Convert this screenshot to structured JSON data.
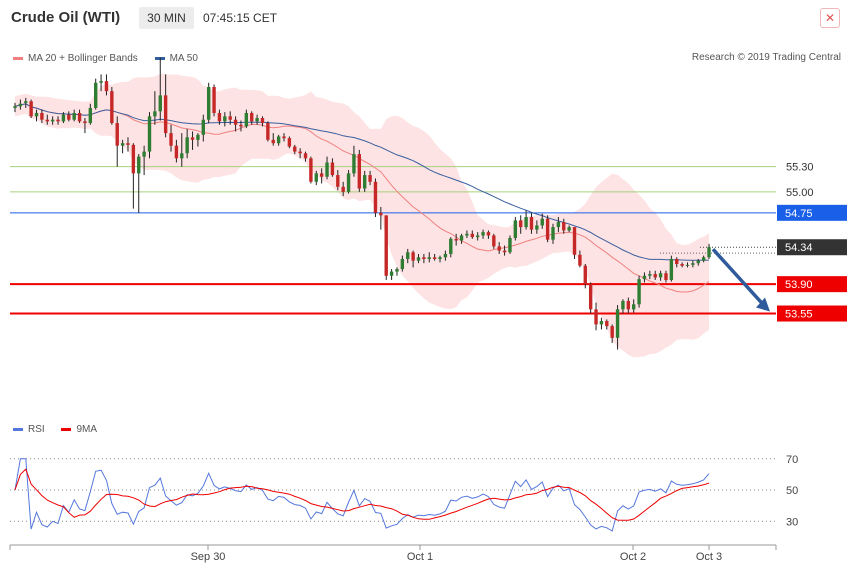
{
  "header": {
    "title": "Crude Oil (WTI)",
    "timeframe": "30 MIN",
    "time": "07:45:15 CET",
    "close_symbol": "✕"
  },
  "legend": {
    "items": [
      {
        "label": "MA 20 + Bollinger Bands",
        "color": "#f08080"
      },
      {
        "label": "MA 50",
        "color": "#3060a0"
      }
    ],
    "research": "Research © 2019 Trading Central"
  },
  "rsi_legend": {
    "items": [
      {
        "label": "RSI",
        "color": "#5577dd"
      },
      {
        "label": "9MA",
        "color": "#ee0000"
      }
    ]
  },
  "chart_data": [
    {
      "type": "candlestick",
      "instrument": "Crude Oil (WTI)",
      "timeframe": "30 MIN",
      "ylim": [
        52.4,
        56.5
      ],
      "levels": [
        {
          "value": 55.3,
          "label": "55.30",
          "style": "thin-green"
        },
        {
          "value": 55.0,
          "label": "55.00",
          "style": "thin-green"
        },
        {
          "value": 54.75,
          "label": "54.75",
          "style": "blue",
          "color": "#1a5fe8"
        },
        {
          "value": 53.9,
          "label": "53.90",
          "style": "red",
          "color": "#ee0000"
        },
        {
          "value": 53.55,
          "label": "53.55",
          "style": "red",
          "color": "#ee0000"
        }
      ],
      "last_price": {
        "value": 54.34,
        "label": "54.34"
      },
      "forecast_arrow": {
        "from": 54.34,
        "to": 53.55
      },
      "x_labels": [
        "Sep 30",
        "Oct 1",
        "Oct 2",
        "Oct 3"
      ],
      "candles": [
        [
          56.0,
          56.06,
          55.95,
          56.02
        ],
        [
          56.02,
          56.1,
          55.98,
          56.05
        ],
        [
          56.06,
          56.12,
          56.0,
          56.08
        ],
        [
          56.08,
          56.1,
          55.88,
          55.9
        ],
        [
          55.9,
          55.98,
          55.84,
          55.94
        ],
        [
          55.94,
          55.98,
          55.82,
          55.86
        ],
        [
          55.86,
          55.92,
          55.8,
          55.84
        ],
        [
          55.84,
          55.9,
          55.8,
          55.86
        ],
        [
          55.86,
          55.9,
          55.8,
          55.84
        ],
        [
          55.84,
          55.95,
          55.82,
          55.92
        ],
        [
          55.92,
          55.96,
          55.84,
          55.86
        ],
        [
          55.86,
          55.98,
          55.84,
          55.94
        ],
        [
          55.94,
          55.98,
          55.82,
          55.84
        ],
        [
          55.84,
          55.88,
          55.7,
          55.82
        ],
        [
          55.82,
          56.05,
          55.8,
          56.0
        ],
        [
          56.0,
          56.35,
          55.98,
          56.3
        ],
        [
          56.3,
          56.4,
          56.2,
          56.32
        ],
        [
          56.32,
          56.4,
          56.15,
          56.2
        ],
        [
          56.2,
          56.25,
          55.8,
          55.82
        ],
        [
          55.82,
          55.9,
          55.3,
          55.55
        ],
        [
          55.55,
          55.62,
          55.46,
          55.58
        ],
        [
          55.58,
          55.65,
          55.48,
          55.56
        ],
        [
          55.56,
          55.58,
          54.8,
          55.22
        ],
        [
          55.22,
          55.45,
          54.75,
          55.42
        ],
        [
          55.42,
          55.55,
          55.2,
          55.48
        ],
        [
          55.48,
          55.95,
          55.4,
          55.9
        ],
        [
          55.9,
          56.2,
          55.8,
          55.96
        ],
        [
          55.96,
          56.6,
          55.85,
          56.15
        ],
        [
          56.15,
          56.4,
          55.65,
          55.7
        ],
        [
          55.7,
          55.8,
          55.48,
          55.55
        ],
        [
          55.55,
          55.62,
          55.35,
          55.4
        ],
        [
          55.4,
          55.7,
          55.3,
          55.46
        ],
        [
          55.46,
          55.75,
          55.4,
          55.65
        ],
        [
          55.65,
          55.72,
          55.5,
          55.62
        ],
        [
          55.62,
          55.7,
          55.54,
          55.68
        ],
        [
          55.68,
          55.92,
          55.6,
          55.86
        ],
        [
          55.86,
          56.3,
          55.82,
          56.25
        ],
        [
          56.25,
          56.28,
          55.9,
          55.94
        ],
        [
          55.94,
          55.98,
          55.8,
          55.84
        ],
        [
          55.84,
          55.95,
          55.78,
          55.9
        ],
        [
          55.9,
          55.96,
          55.8,
          55.86
        ],
        [
          55.86,
          55.9,
          55.72,
          55.8
        ],
        [
          55.8,
          55.85,
          55.72,
          55.78
        ],
        [
          55.78,
          55.98,
          55.76,
          55.94
        ],
        [
          55.94,
          55.96,
          55.8,
          55.84
        ],
        [
          55.84,
          55.92,
          55.8,
          55.88
        ],
        [
          55.88,
          55.9,
          55.78,
          55.82
        ],
        [
          55.82,
          55.84,
          55.6,
          55.62
        ],
        [
          55.62,
          55.7,
          55.55,
          55.58
        ],
        [
          55.58,
          55.68,
          55.55,
          55.66
        ],
        [
          55.66,
          55.7,
          55.6,
          55.64
        ],
        [
          55.64,
          55.66,
          55.52,
          55.54
        ],
        [
          55.54,
          55.56,
          55.45,
          55.48
        ],
        [
          55.48,
          55.52,
          55.4,
          55.46
        ],
        [
          55.46,
          55.48,
          55.36,
          55.4
        ],
        [
          55.4,
          55.42,
          55.1,
          55.12
        ],
        [
          55.12,
          55.25,
          55.08,
          55.22
        ],
        [
          55.22,
          55.28,
          55.1,
          55.18
        ],
        [
          55.18,
          55.42,
          55.15,
          55.35
        ],
        [
          55.35,
          55.4,
          55.18,
          55.2
        ],
        [
          55.2,
          55.26,
          55.02,
          55.06
        ],
        [
          55.06,
          55.12,
          54.95,
          55.0
        ],
        [
          55.0,
          55.26,
          54.98,
          55.22
        ],
        [
          55.22,
          55.55,
          55.18,
          55.45
        ],
        [
          55.45,
          55.5,
          55.0,
          55.04
        ],
        [
          55.04,
          55.25,
          55.0,
          55.2
        ],
        [
          55.2,
          55.25,
          55.08,
          55.12
        ],
        [
          55.12,
          55.16,
          54.7,
          54.75
        ],
        [
          54.75,
          54.82,
          54.55,
          54.72
        ],
        [
          54.72,
          54.72,
          53.95,
          54.0
        ],
        [
          54.0,
          54.08,
          53.95,
          54.05
        ],
        [
          54.05,
          54.1,
          54.0,
          54.08
        ],
        [
          54.08,
          54.24,
          54.05,
          54.2
        ],
        [
          54.2,
          54.32,
          54.15,
          54.28
        ],
        [
          54.28,
          54.3,
          54.1,
          54.18
        ],
        [
          54.18,
          54.26,
          54.15,
          54.22
        ],
        [
          54.22,
          54.26,
          54.15,
          54.2
        ],
        [
          54.2,
          54.28,
          54.16,
          54.22
        ],
        [
          54.22,
          54.26,
          54.18,
          54.2
        ],
        [
          54.2,
          54.24,
          54.16,
          54.22
        ],
        [
          54.22,
          54.3,
          54.18,
          54.26
        ],
        [
          54.26,
          54.46,
          54.22,
          54.44
        ],
        [
          54.44,
          54.5,
          54.36,
          54.42
        ],
        [
          54.42,
          54.5,
          54.38,
          54.48
        ],
        [
          54.48,
          54.54,
          54.45,
          54.5
        ],
        [
          54.5,
          54.54,
          54.44,
          54.46
        ],
        [
          54.46,
          54.52,
          54.42,
          54.48
        ],
        [
          54.48,
          54.55,
          54.44,
          54.52
        ],
        [
          54.52,
          54.54,
          54.44,
          54.48
        ],
        [
          54.48,
          54.5,
          54.32,
          54.35
        ],
        [
          54.35,
          54.4,
          54.26,
          54.3
        ],
        [
          54.3,
          54.36,
          54.24,
          54.28
        ],
        [
          54.28,
          54.48,
          54.26,
          54.45
        ],
        [
          54.45,
          54.7,
          54.42,
          54.66
        ],
        [
          54.66,
          54.72,
          54.5,
          54.58
        ],
        [
          54.58,
          54.78,
          54.55,
          54.7
        ],
        [
          54.7,
          54.75,
          54.5,
          54.55
        ],
        [
          54.55,
          54.66,
          54.5,
          54.6
        ],
        [
          54.6,
          54.74,
          54.56,
          54.68
        ],
        [
          54.68,
          54.72,
          54.4,
          54.43
        ],
        [
          54.43,
          54.62,
          54.38,
          54.58
        ],
        [
          54.58,
          54.7,
          54.52,
          54.64
        ],
        [
          54.64,
          54.68,
          54.5,
          54.54
        ],
        [
          54.54,
          54.6,
          54.52,
          54.58
        ],
        [
          54.58,
          54.58,
          54.2,
          54.25
        ],
        [
          54.25,
          54.3,
          54.1,
          54.12
        ],
        [
          54.12,
          54.14,
          53.85,
          53.9
        ],
        [
          53.9,
          53.92,
          53.55,
          53.6
        ],
        [
          53.6,
          53.68,
          53.35,
          53.42
        ],
        [
          53.42,
          53.5,
          53.36,
          53.46
        ],
        [
          53.46,
          53.48,
          53.36,
          53.4
        ],
        [
          53.4,
          53.42,
          53.2,
          53.26
        ],
        [
          53.26,
          53.65,
          53.12,
          53.6
        ],
        [
          53.6,
          53.72,
          53.55,
          53.7
        ],
        [
          53.7,
          53.74,
          53.55,
          53.6
        ],
        [
          53.6,
          53.72,
          53.56,
          53.66
        ],
        [
          53.66,
          54.0,
          53.62,
          53.96
        ],
        [
          53.96,
          54.04,
          53.92,
          54.0
        ],
        [
          54.0,
          54.06,
          53.96,
          54.02
        ],
        [
          54.02,
          54.06,
          53.95,
          53.98
        ],
        [
          53.98,
          54.06,
          53.94,
          54.03
        ],
        [
          54.03,
          54.06,
          53.92,
          53.95
        ],
        [
          53.95,
          54.24,
          53.93,
          54.2
        ],
        [
          54.2,
          54.22,
          54.1,
          54.14
        ],
        [
          54.14,
          54.16,
          54.1,
          54.12
        ],
        [
          54.12,
          54.16,
          54.1,
          54.13
        ],
        [
          54.13,
          54.18,
          54.1,
          54.15
        ],
        [
          54.15,
          54.2,
          54.12,
          54.18
        ],
        [
          54.18,
          54.24,
          54.16,
          54.22
        ],
        [
          54.22,
          54.38,
          54.2,
          54.34
        ]
      ]
    },
    {
      "type": "line",
      "name": "RSI",
      "ylim": [
        18,
        82
      ],
      "y_ticks": [
        70,
        50,
        30
      ],
      "series": [
        {
          "name": "RSI",
          "color": "#5577dd"
        },
        {
          "name": "9MA",
          "color": "#ee0000"
        }
      ]
    }
  ]
}
